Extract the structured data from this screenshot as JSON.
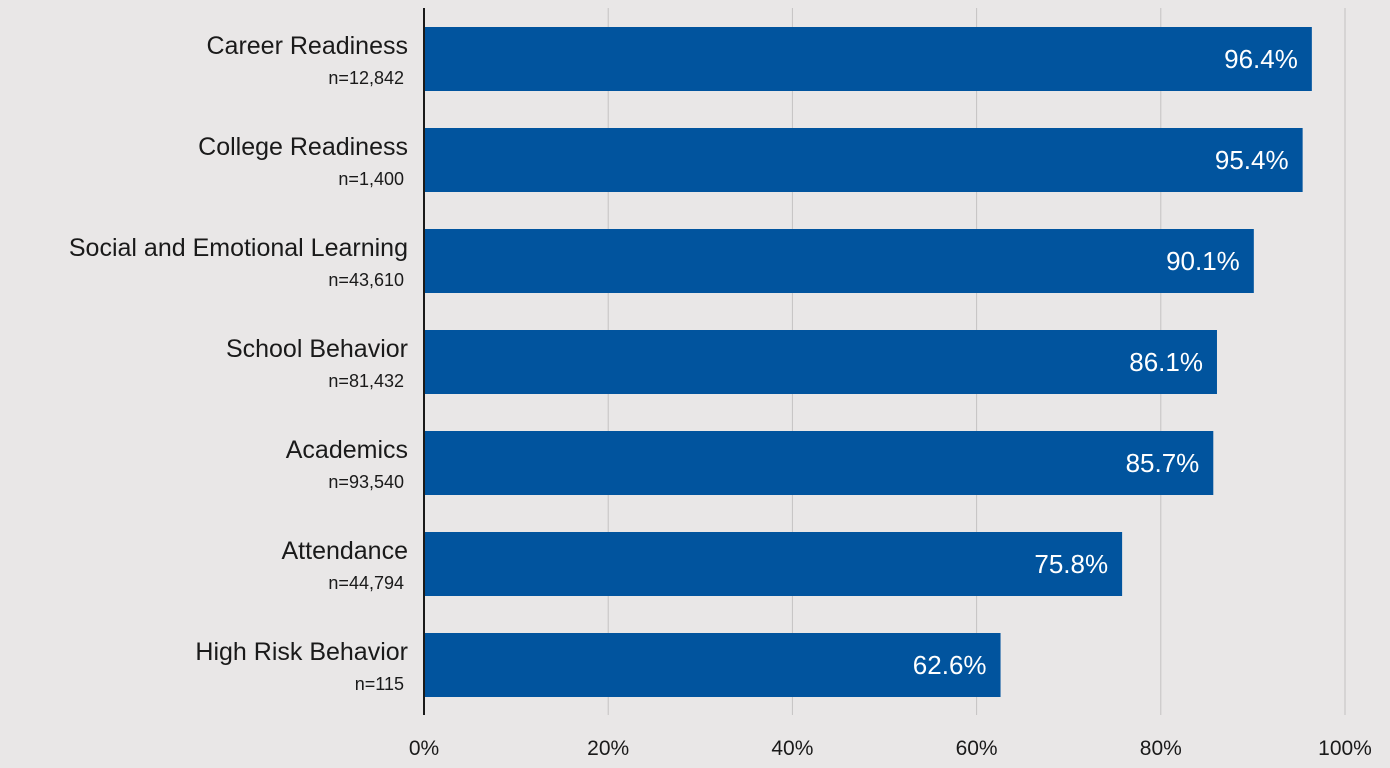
{
  "colors": {
    "background": "#e9e7e7",
    "bar": "#01549e",
    "bar_label": "#ffffff",
    "text": "#1a1a1a",
    "grid": "#c4c2c2",
    "axis": "#1a1a1a"
  },
  "chart_data": {
    "type": "bar",
    "orientation": "horizontal",
    "title": "",
    "xlabel": "",
    "ylabel": "",
    "categories": [
      "Career Readiness",
      "College Readiness",
      "Social and Emotional Learning",
      "School Behavior",
      "Academics",
      "Attendance",
      "High Risk Behavior"
    ],
    "sample_sizes": [
      "n=12,842",
      "n=1,400",
      "n=43,610",
      "n=81,432",
      "n=93,540",
      "n=44,794",
      "n=115"
    ],
    "values": [
      96.4,
      95.4,
      90.1,
      86.1,
      85.7,
      75.8,
      62.6
    ],
    "value_labels": [
      "96.4%",
      "95.4%",
      "90.1%",
      "86.1%",
      "85.7%",
      "75.8%",
      "62.6%"
    ],
    "xlim": [
      0,
      100
    ],
    "x_ticks": [
      0,
      20,
      40,
      60,
      80,
      100
    ],
    "x_tick_labels": [
      "0%",
      "20%",
      "40%",
      "60%",
      "80%",
      "100%"
    ],
    "grid": true,
    "legend": "none"
  }
}
